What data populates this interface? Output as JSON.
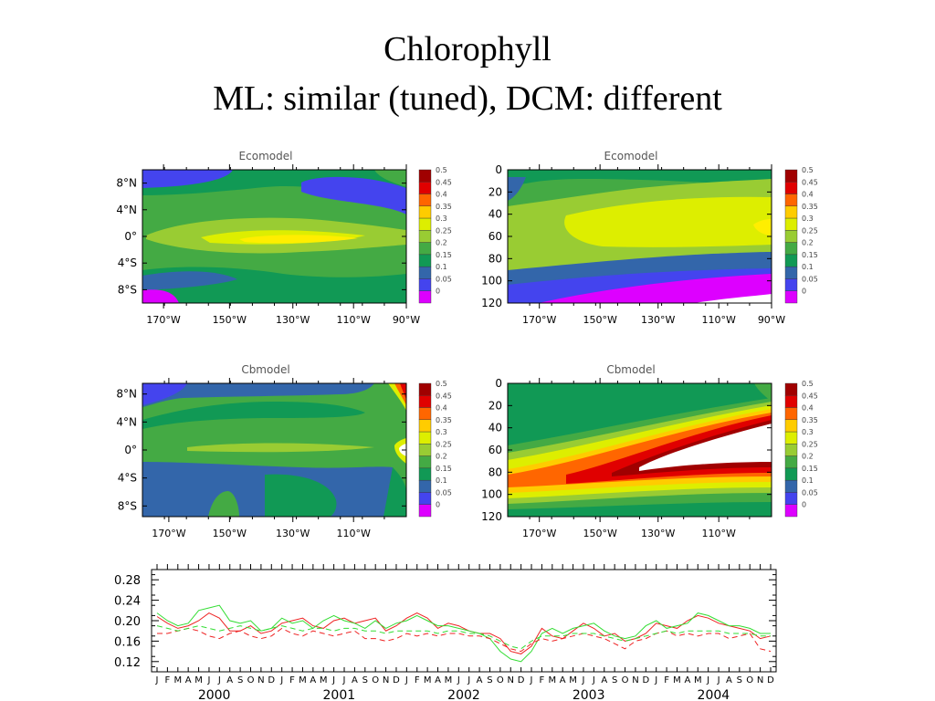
{
  "slide": {
    "title_line1": "Chlorophyll",
    "title_line2": "ML: similar (tuned), DCM: different"
  },
  "colorbar": {
    "levels": [
      "0.5",
      "0.45",
      "0.4",
      "0.35",
      "0.3",
      "0.25",
      "0.2",
      "0.15",
      "0.1",
      "0.05",
      "0"
    ],
    "colors": [
      "#a00000",
      "#e00000",
      "#ff6600",
      "#ffcc00",
      "#ddee00",
      "#99cc33",
      "#44aa44",
      "#119955",
      "#3366aa",
      "#4444ee",
      "#dd00ff"
    ]
  },
  "chart_data": [
    {
      "type": "heatmap",
      "title": "Ecomodel",
      "x_ticks": [
        "170°W",
        "150°W",
        "130°W",
        "110°W",
        "90°W"
      ],
      "y_ticks": [
        "8°N",
        "4°N",
        "0°",
        "4°S",
        "8°S"
      ],
      "colorbar_range": [
        0,
        0.5
      ],
      "description_values": {
        "equator_max": 0.3,
        "north_min": 0.1,
        "south_corner_min": 0.0
      }
    },
    {
      "type": "heatmap",
      "title": "Ecomodel",
      "x_ticks": [
        "170°W",
        "150°W",
        "130°W",
        "110°W",
        "90°W"
      ],
      "y_ticks": [
        "0",
        "20",
        "40",
        "60",
        "80",
        "100",
        "120"
      ],
      "colorbar_range": [
        0,
        0.5
      ],
      "description_values": {
        "subsurface_max": 0.3,
        "deep_min": 0.0
      }
    },
    {
      "type": "heatmap",
      "title": "Cbmodel",
      "x_ticks": [
        "170°W",
        "150°W",
        "130°W",
        "110°W"
      ],
      "y_ticks": [
        "8°N",
        "4°N",
        "0°",
        "4°S",
        "8°S"
      ],
      "colorbar_range": [
        0,
        0.5
      ],
      "description_values": {
        "equator_value": 0.25,
        "east_coast_max": 0.5
      }
    },
    {
      "type": "heatmap",
      "title": "Cbmodel",
      "x_ticks": [
        "170°W",
        "150°W",
        "130°W",
        "110°W"
      ],
      "y_ticks": [
        "0",
        "20",
        "40",
        "60",
        "80",
        "100",
        "120"
      ],
      "colorbar_range": [
        0,
        0.5
      ],
      "description_values": {
        "dcm_band_max": 0.5,
        "surface_value": 0.15
      }
    },
    {
      "type": "line",
      "title": "",
      "xlabel": "",
      "ylabel": "",
      "ylim": [
        0.1,
        0.3
      ],
      "y_ticks": [
        "0.28",
        "0.24",
        "0.20",
        "0.16",
        "0.12"
      ],
      "y_tick_values": [
        0.28,
        0.24,
        0.2,
        0.16,
        0.12
      ],
      "months": [
        "J",
        "F",
        "M",
        "A",
        "M",
        "J",
        "J",
        "A",
        "S",
        "O",
        "N",
        "D",
        "J",
        "F",
        "M",
        "A",
        "M",
        "J",
        "J",
        "A",
        "S",
        "O",
        "N",
        "D",
        "J",
        "F",
        "M",
        "A",
        "M",
        "J",
        "J",
        "A",
        "S",
        "O",
        "N",
        "D",
        "J",
        "F",
        "M",
        "A",
        "M",
        "J",
        "J",
        "A",
        "S",
        "O",
        "N",
        "D",
        "J",
        "F",
        "M",
        "A",
        "M",
        "J",
        "J",
        "A",
        "S",
        "O",
        "N",
        "D"
      ],
      "years": [
        "2000",
        "2001",
        "2002",
        "2003",
        "2004"
      ],
      "series": [
        {
          "style": "solid-red",
          "color": "#ee2222",
          "dash": false,
          "values": [
            0.208,
            0.195,
            0.185,
            0.19,
            0.2,
            0.215,
            0.205,
            0.18,
            0.18,
            0.19,
            0.175,
            0.18,
            0.195,
            0.2,
            0.205,
            0.19,
            0.185,
            0.2,
            0.205,
            0.195,
            0.2,
            0.205,
            0.18,
            0.19,
            0.205,
            0.215,
            0.205,
            0.185,
            0.195,
            0.19,
            0.18,
            0.175,
            0.175,
            0.165,
            0.14,
            0.135,
            0.15,
            0.185,
            0.17,
            0.165,
            0.18,
            0.195,
            0.185,
            0.17,
            0.175,
            0.16,
            0.165,
            0.175,
            0.195,
            0.19,
            0.185,
            0.2,
            0.21,
            0.205,
            0.195,
            0.19,
            0.185,
            0.18,
            0.165,
            0.17
          ]
        },
        {
          "style": "solid-green",
          "color": "#33dd33",
          "dash": false,
          "values": [
            0.215,
            0.2,
            0.19,
            0.195,
            0.22,
            0.225,
            0.23,
            0.2,
            0.195,
            0.2,
            0.18,
            0.185,
            0.205,
            0.195,
            0.2,
            0.185,
            0.2,
            0.21,
            0.2,
            0.195,
            0.185,
            0.2,
            0.185,
            0.195,
            0.2,
            0.21,
            0.2,
            0.19,
            0.19,
            0.185,
            0.18,
            0.175,
            0.165,
            0.14,
            0.125,
            0.12,
            0.14,
            0.175,
            0.185,
            0.175,
            0.185,
            0.19,
            0.195,
            0.18,
            0.17,
            0.165,
            0.17,
            0.19,
            0.2,
            0.185,
            0.19,
            0.195,
            0.215,
            0.21,
            0.2,
            0.19,
            0.19,
            0.185,
            0.175,
            0.175
          ]
        },
        {
          "style": "dashed-red",
          "color": "#ee2222",
          "dash": true,
          "values": [
            0.175,
            0.175,
            0.18,
            0.185,
            0.18,
            0.17,
            0.165,
            0.175,
            0.18,
            0.17,
            0.165,
            0.17,
            0.185,
            0.175,
            0.17,
            0.18,
            0.175,
            0.17,
            0.175,
            0.18,
            0.165,
            0.165,
            0.16,
            0.165,
            0.175,
            0.17,
            0.175,
            0.17,
            0.175,
            0.175,
            0.17,
            0.17,
            0.165,
            0.155,
            0.145,
            0.14,
            0.155,
            0.165,
            0.16,
            0.165,
            0.17,
            0.175,
            0.17,
            0.165,
            0.155,
            0.145,
            0.16,
            0.165,
            0.175,
            0.18,
            0.17,
            0.175,
            0.17,
            0.175,
            0.175,
            0.165,
            0.17,
            0.175,
            0.145,
            0.14
          ]
        },
        {
          "style": "dashed-green",
          "color": "#33dd33",
          "dash": true,
          "values": [
            0.19,
            0.185,
            0.18,
            0.185,
            0.19,
            0.185,
            0.18,
            0.185,
            0.19,
            0.185,
            0.18,
            0.185,
            0.19,
            0.185,
            0.18,
            0.185,
            0.185,
            0.18,
            0.185,
            0.185,
            0.18,
            0.18,
            0.175,
            0.18,
            0.18,
            0.18,
            0.18,
            0.175,
            0.18,
            0.18,
            0.175,
            0.175,
            0.17,
            0.16,
            0.15,
            0.145,
            0.16,
            0.17,
            0.17,
            0.17,
            0.175,
            0.175,
            0.175,
            0.17,
            0.165,
            0.16,
            0.165,
            0.17,
            0.175,
            0.18,
            0.175,
            0.18,
            0.18,
            0.18,
            0.18,
            0.175,
            0.175,
            0.175,
            0.17,
            0.17
          ]
        }
      ]
    }
  ]
}
